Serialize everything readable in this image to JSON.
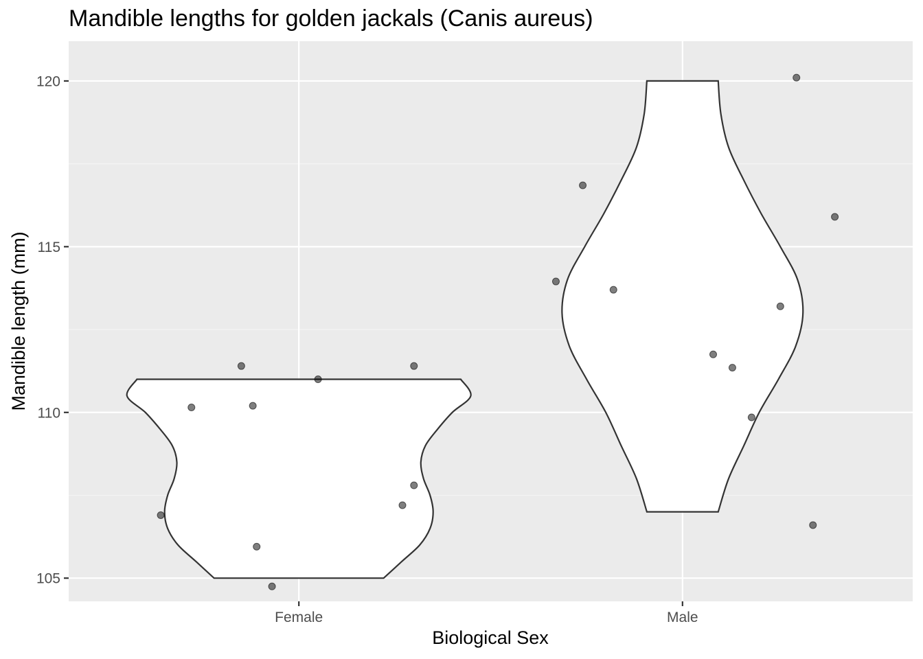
{
  "chart_data": {
    "type": "violin",
    "title": "Mandible lengths for golden jackals (Canis aureus)",
    "xlabel": "Biological Sex",
    "ylabel": "Mandible length (mm)",
    "categories": [
      "Female",
      "Male"
    ],
    "ylim": [
      104.3,
      121.2
    ],
    "yticks": [
      105,
      110,
      115,
      120
    ],
    "grid": true,
    "series": [
      {
        "category": "Female",
        "values": [
          110.0,
          111.0,
          107.0,
          110.0,
          107.0,
          106.0,
          105.0,
          111.0,
          107.0,
          111.0
        ],
        "jitter_points": [
          {
            "x_offset": -0.36,
            "y": 106.9
          },
          {
            "x_offset": -0.28,
            "y": 110.15
          },
          {
            "x_offset": -0.15,
            "y": 111.4
          },
          {
            "x_offset": -0.12,
            "y": 110.2
          },
          {
            "x_offset": -0.11,
            "y": 105.95
          },
          {
            "x_offset": -0.07,
            "y": 104.75
          },
          {
            "x_offset": 0.05,
            "y": 111.0
          },
          {
            "x_offset": 0.27,
            "y": 107.2
          },
          {
            "x_offset": 0.3,
            "y": 107.8
          },
          {
            "x_offset": 0.3,
            "y": 111.4
          }
        ],
        "density_profile": [
          {
            "y": 105.0,
            "w": 0.221
          },
          {
            "y": 105.5,
            "w": 0.268
          },
          {
            "y": 106.0,
            "w": 0.315
          },
          {
            "y": 106.5,
            "w": 0.342
          },
          {
            "y": 107.0,
            "w": 0.35
          },
          {
            "y": 107.5,
            "w": 0.342
          },
          {
            "y": 108.0,
            "w": 0.325
          },
          {
            "y": 108.5,
            "w": 0.318
          },
          {
            "y": 109.0,
            "w": 0.33
          },
          {
            "y": 109.5,
            "w": 0.362
          },
          {
            "y": 110.0,
            "w": 0.4
          },
          {
            "y": 110.5,
            "w": 0.448
          },
          {
            "y": 111.0,
            "w": 0.422
          }
        ]
      },
      {
        "category": "Male",
        "values": [
          120.0,
          117.0,
          116.0,
          114.0,
          114.0,
          113.0,
          112.0,
          111.0,
          110.0,
          107.0
        ],
        "jitter_points": [
          {
            "x_offset": -0.33,
            "y": 113.95
          },
          {
            "x_offset": -0.26,
            "y": 116.85
          },
          {
            "x_offset": -0.18,
            "y": 113.7
          },
          {
            "x_offset": 0.08,
            "y": 111.75
          },
          {
            "x_offset": 0.13,
            "y": 111.35
          },
          {
            "x_offset": 0.18,
            "y": 109.85
          },
          {
            "x_offset": 0.255,
            "y": 113.2
          },
          {
            "x_offset": 0.297,
            "y": 120.1
          },
          {
            "x_offset": 0.34,
            "y": 106.6
          },
          {
            "x_offset": 0.397,
            "y": 115.9
          }
        ],
        "density_profile": [
          {
            "y": 107.0,
            "w": 0.093
          },
          {
            "y": 108.0,
            "w": 0.12
          },
          {
            "y": 109.0,
            "w": 0.16
          },
          {
            "y": 110.0,
            "w": 0.2
          },
          {
            "y": 111.0,
            "w": 0.25
          },
          {
            "y": 112.0,
            "w": 0.295
          },
          {
            "y": 113.0,
            "w": 0.314
          },
          {
            "y": 114.0,
            "w": 0.3
          },
          {
            "y": 115.0,
            "w": 0.255
          },
          {
            "y": 116.0,
            "w": 0.205
          },
          {
            "y": 117.0,
            "w": 0.16
          },
          {
            "y": 118.0,
            "w": 0.12
          },
          {
            "y": 119.0,
            "w": 0.1
          },
          {
            "y": 120.0,
            "w": 0.093
          }
        ]
      }
    ]
  },
  "colors": {
    "panel_background": "#ebebeb",
    "grid_major": "#ffffff",
    "grid_minor": "#f5f5f5",
    "violin_fill": "#ffffff",
    "violin_stroke": "#333333",
    "point_fill": "#000000",
    "point_opacity": 0.5,
    "tick_text": "#4d4d4d",
    "tick_mark": "#333333"
  }
}
